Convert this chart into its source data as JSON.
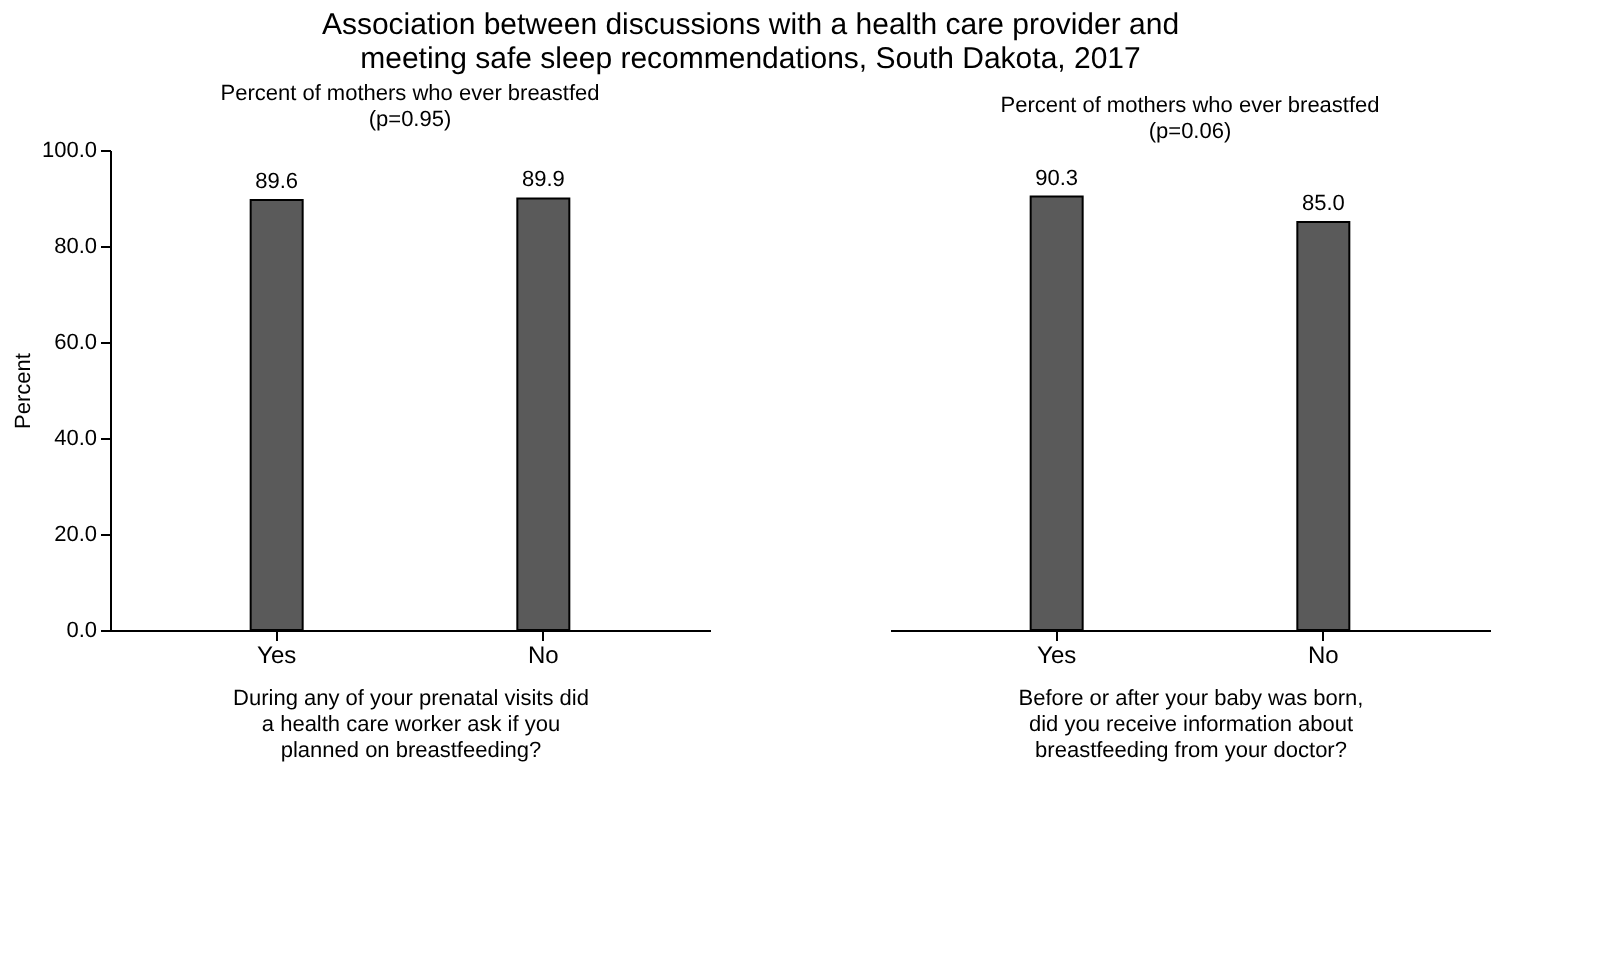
{
  "chart_data": [
    {
      "type": "bar",
      "title": "Association between discussions with a health care provider and meeting safe sleep recommendations, South Dakota, 2017",
      "subtitle": "Percent of mothers who ever breastfed (p=0.95)",
      "categories": [
        "Yes",
        "No"
      ],
      "values": [
        89.6,
        89.9
      ],
      "color": "#5a5a5a",
      "ylabel": "Percent",
      "xlabel": "During any of your prenatal visits did a health care worker ask if you planned on breastfeeding?",
      "ylim": [
        0,
        100
      ],
      "yticks": [
        {
          "value": 0,
          "label": "0.0"
        },
        {
          "value": 20,
          "label": "20.0"
        },
        {
          "value": 40,
          "label": "40.0"
        },
        {
          "value": 60,
          "label": "60.0"
        },
        {
          "value": 80,
          "label": "80.0"
        },
        {
          "value": 100,
          "label": "100.0"
        }
      ],
      "value_labels": [
        "89.6",
        "89.9"
      ],
      "grid": false
    },
    {
      "type": "bar",
      "subtitle": "Percent of mothers who ever breastfed (p=0.06)",
      "categories": [
        "Yes",
        "No"
      ],
      "values": [
        90.3,
        85.0
      ],
      "color": "#5a5a5a",
      "xlabel": "Before or after your baby was born, did you receive information about breastfeeding from your doctor?",
      "ylim": [
        0,
        100
      ],
      "tick_labels": "x",
      "value_labels": [
        "90.3",
        "85.0"
      ],
      "grid": false
    }
  ]
}
